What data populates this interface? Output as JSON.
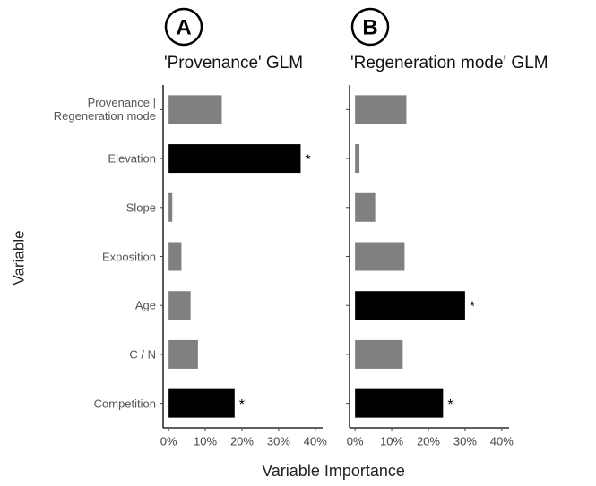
{
  "xlabel": "Variable Importance",
  "ylabel": "Variable",
  "chart_data": [
    {
      "type": "barh",
      "panel": "A",
      "title": "'Provenance' GLM",
      "categories": [
        "Provenance |\nRegeneration mode",
        "Elevation",
        "Slope",
        "Exposition",
        "Age",
        "C / N",
        "Competition"
      ],
      "values": [
        14.5,
        36,
        1,
        3.5,
        6,
        8,
        18
      ],
      "colors": [
        "#808080",
        "#000000",
        "#808080",
        "#808080",
        "#808080",
        "#808080",
        "#000000"
      ],
      "markers": [
        null,
        "*",
        null,
        null,
        null,
        null,
        "*"
      ],
      "xlim": [
        -1.5,
        42
      ],
      "xticks": [
        {
          "value": 0,
          "label": "0%"
        },
        {
          "value": 10,
          "label": "10%"
        },
        {
          "value": 20,
          "label": "20%"
        },
        {
          "value": 30,
          "label": "30%"
        },
        {
          "value": 40,
          "label": "40%"
        }
      ]
    },
    {
      "type": "barh",
      "panel": "B",
      "title": "'Regeneration mode' GLM",
      "values": [
        14,
        1.2,
        5.5,
        13.5,
        30,
        13,
        24
      ],
      "colors": [
        "#808080",
        "#808080",
        "#808080",
        "#808080",
        "#000000",
        "#808080",
        "#000000"
      ],
      "markers": [
        null,
        null,
        null,
        null,
        "*",
        null,
        "*"
      ],
      "xlim": [
        -1.5,
        42
      ],
      "xticks": [
        {
          "value": 0,
          "label": "0%"
        },
        {
          "value": 10,
          "label": "10%"
        },
        {
          "value": 20,
          "label": "20%"
        },
        {
          "value": 30,
          "label": "30%"
        },
        {
          "value": 40,
          "label": "40%"
        }
      ]
    }
  ]
}
